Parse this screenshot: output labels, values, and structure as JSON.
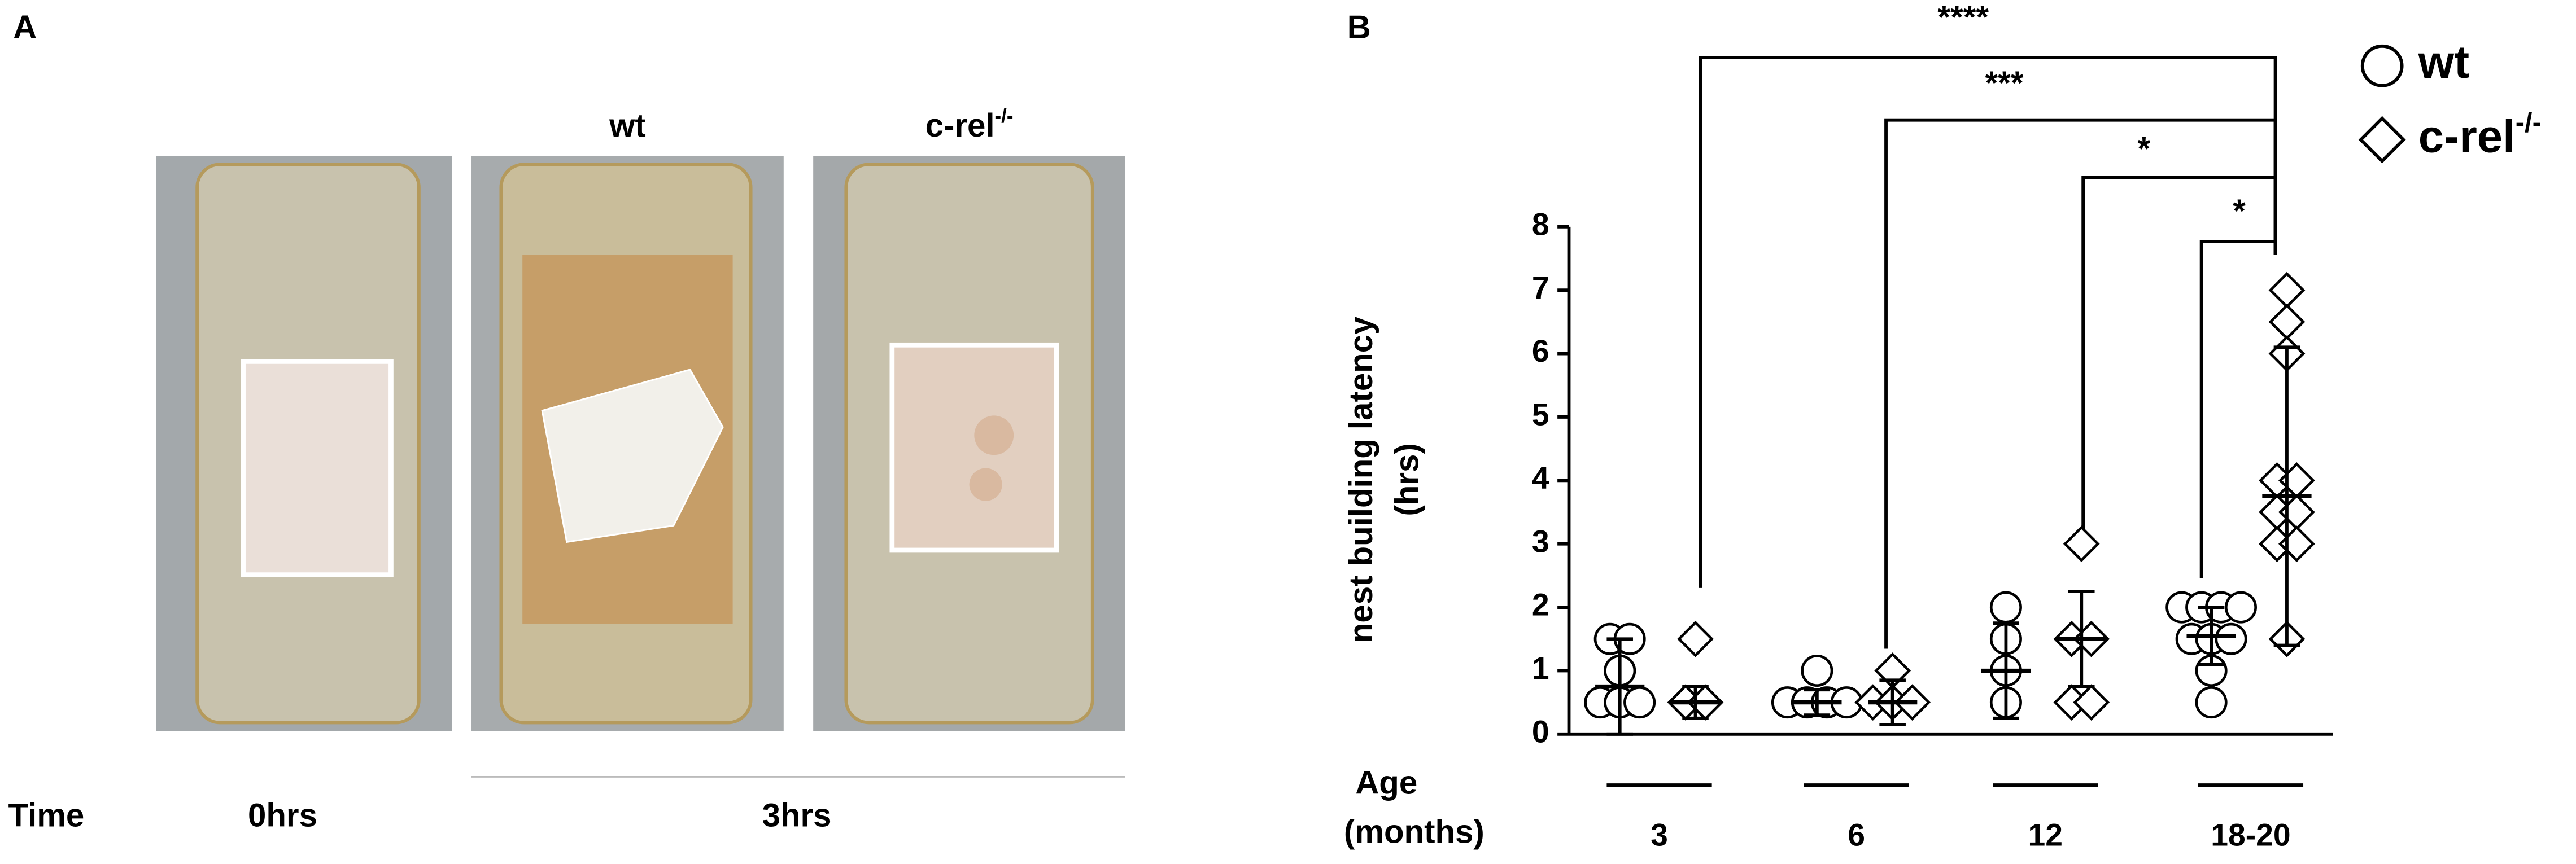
{
  "panel_a": {
    "label": "A",
    "column_labels": [
      "wt",
      "c-rel-/-"
    ],
    "time_label": "Time",
    "times": [
      "0hrs",
      "3hrs"
    ]
  },
  "chart_data": {
    "type": "scatter",
    "panel_label": "B",
    "y_label": [
      "nest building latency",
      "(hrs)"
    ],
    "x_label": [
      "Age",
      "(months)"
    ],
    "categories": [
      "3",
      "6",
      "12",
      "18-20"
    ],
    "ylim": [
      0,
      8
    ],
    "yticks": [
      0,
      1,
      2,
      3,
      4,
      5,
      6,
      7,
      8
    ],
    "series": [
      {
        "name": "wt",
        "marker": "circle",
        "color": "#000000",
        "values": [
          [
            1.5,
            1.5,
            0.5,
            0.5,
            0.5,
            1
          ],
          [
            0.5,
            0.5,
            0.5,
            1,
            0.5
          ],
          [
            2,
            1.5,
            1,
            0.5
          ],
          [
            2,
            2,
            2,
            1.5,
            1.5,
            1,
            0.5,
            1.5,
            2
          ]
        ],
        "mean": [
          0.75,
          0.5,
          1,
          1.55
        ],
        "sd": [
          0.75,
          0.2,
          0.75,
          0.45
        ]
      },
      {
        "name": "c-rel-/-",
        "marker": "diamond",
        "color": "#000000",
        "values": [
          [
            1.5,
            0.5,
            0.5
          ],
          [
            0.5,
            0.5,
            0.5,
            1
          ],
          [
            3,
            1.5,
            1.5,
            0.5,
            0.5
          ],
          [
            7,
            6.5,
            6,
            4,
            4,
            3.5,
            3.5,
            3,
            3,
            1.5
          ]
        ],
        "mean": [
          0.5,
          0.5,
          1.5,
          3.75
        ],
        "sd": [
          0.25,
          0.35,
          0.75,
          2.35
        ]
      }
    ],
    "annotations": [
      "****",
      "***",
      "*",
      "*"
    ],
    "legend": "top-right"
  }
}
